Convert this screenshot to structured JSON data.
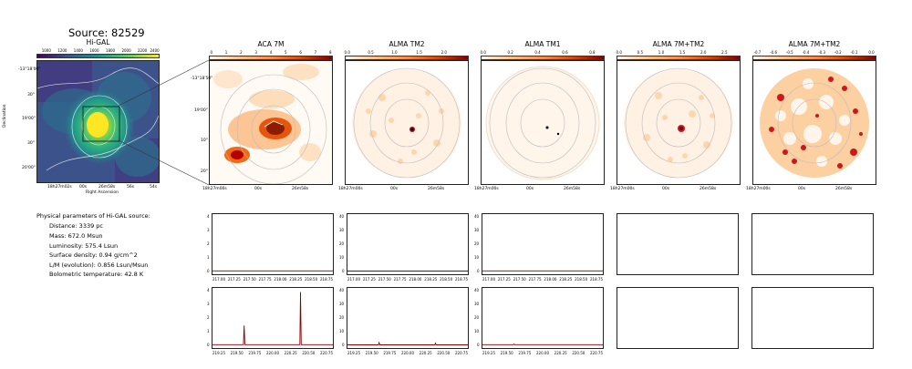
{
  "source_title": "Source: 82529",
  "panels": [
    {
      "title": "Hi-GAL",
      "cb_ticks": [
        "1000",
        "1200",
        "1400",
        "1600",
        "1800",
        "2000",
        "2200",
        "2400"
      ],
      "cb_colors": [
        "#440154",
        "#3b528b",
        "#21918c",
        "#5ec962",
        "#fde725"
      ]
    },
    {
      "title": "ACA 7M",
      "cb_ticks": [
        "0",
        "1",
        "2",
        "3",
        "4",
        "5",
        "6",
        "7",
        "8"
      ],
      "cb_colors": [
        "#fff5eb",
        "#fdbe85",
        "#fd8d3c",
        "#d94801",
        "#7f0000"
      ]
    },
    {
      "title": "ALMA TM2",
      "cb_ticks": [
        "0.0",
        "0.5",
        "1.0",
        "1.5",
        "2.0"
      ],
      "cb_colors": [
        "#fff5eb",
        "#fdbe85",
        "#fd8d3c",
        "#d94801",
        "#7f0000"
      ]
    },
    {
      "title": "ALMA TM1",
      "cb_ticks": [
        "0.0",
        "0.2",
        "0.4",
        "0.6",
        "0.8"
      ],
      "cb_colors": [
        "#fff5eb",
        "#fdbe85",
        "#fd8d3c",
        "#d94801",
        "#7f0000"
      ]
    },
    {
      "title": "ALMA 7M+TM2",
      "cb_ticks": [
        "0.0",
        "0.5",
        "1.0",
        "1.5",
        "2.0",
        "2.5"
      ],
      "cb_colors": [
        "#fff5eb",
        "#fdbe85",
        "#fd8d3c",
        "#d94801",
        "#7f0000"
      ]
    },
    {
      "title": "ALMA 7M+TM2",
      "cb_ticks": [
        "-0.7",
        "-0.6",
        "-0.5",
        "-0.4",
        "-0.3",
        "-0.2",
        "-0.1",
        "0.0"
      ],
      "cb_colors": [
        "#fff5eb",
        "#fdbe85",
        "#fd8d3c",
        "#d94801",
        "#7f0000"
      ]
    }
  ],
  "higal_axes": {
    "ylabel": "Declination",
    "xlabel": "Right Ascension",
    "yticks": [
      "-13°18'00\"",
      "30\"",
      "19'00\"",
      "30\"",
      "20'00\""
    ],
    "xticks": [
      "18h27m02s",
      "00s",
      "26m58s",
      "56s",
      "54s"
    ]
  },
  "cutout_axes": {
    "yticks": [
      "-13°18'50\"",
      "19'00\"",
      "10\"",
      "20\""
    ],
    "xticks": [
      "18h27m00s",
      "00s",
      "26m58s"
    ]
  },
  "params": {
    "title": "Physical parameters of Hi-GAL source:",
    "lines": [
      "Distance: 3339 pc",
      "Mass: 672.0 Msun",
      "Luminosity: 575.4 Lsun",
      "Surface density: 0.94 g/cm^2",
      "L/M (evolution): 0.856 Lsun/Msun",
      "Bolometric temperature: 42.8 K"
    ]
  },
  "spectra": {
    "row1_xticks": [
      "217.00",
      "217.25",
      "217.50",
      "217.75",
      "218.00",
      "218.25",
      "218.50",
      "218.75"
    ],
    "row2_xticks": [
      "219.25",
      "219.50",
      "219.75",
      "220.00",
      "220.25",
      "220.50",
      "220.75"
    ],
    "aca_yticks": [
      "4",
      "3",
      "2",
      "1",
      "0"
    ],
    "alma_yticks": [
      "40",
      "30",
      "20",
      "10",
      "0"
    ],
    "line_color": "#8b0000"
  },
  "chart_data": [
    {
      "type": "line",
      "title": "ACA 7M",
      "ylim": [
        0,
        4
      ],
      "xlim": [
        216.9,
        218.85
      ],
      "series": [
        {
          "x": [
            216.9,
            217.5,
            218.0,
            218.85
          ],
          "values": [
            0.05,
            0.05,
            0.05,
            0.05
          ]
        }
      ]
    },
    {
      "type": "line",
      "title": "ALMA TM2",
      "ylim": [
        0,
        40
      ],
      "xlim": [
        216.9,
        218.85
      ],
      "series": [
        {
          "x": [
            216.9,
            217.5,
            218.0,
            218.85
          ],
          "values": [
            0.3,
            0.3,
            0.3,
            0.3
          ]
        }
      ]
    },
    {
      "type": "line",
      "title": "ALMA TM1",
      "ylim": [
        0,
        40
      ],
      "xlim": [
        216.9,
        218.85
      ],
      "series": [
        {
          "x": [
            216.9,
            217.5,
            218.0,
            218.85
          ],
          "values": [
            0.5,
            0.5,
            0.5,
            0.5
          ]
        }
      ]
    },
    {
      "type": "line",
      "title": "ACA 7M",
      "ylim": [
        0,
        4
      ],
      "xlim": [
        219.1,
        220.85
      ],
      "series": [
        {
          "x": [
            219.1,
            219.55,
            219.56,
            219.57,
            220.37,
            220.38,
            220.39,
            220.85
          ],
          "values": [
            0.05,
            0.05,
            1.45,
            0.05,
            0.05,
            3.9,
            0.05,
            0.05
          ]
        }
      ]
    },
    {
      "type": "line",
      "title": "ALMA TM2",
      "ylim": [
        0,
        40
      ],
      "xlim": [
        219.1,
        220.85
      ],
      "series": [
        {
          "x": [
            219.1,
            219.55,
            219.56,
            219.57,
            220.37,
            220.38,
            220.39,
            220.85
          ],
          "values": [
            0.3,
            0.3,
            2.0,
            0.3,
            0.3,
            1.6,
            0.3,
            0.3
          ]
        }
      ]
    },
    {
      "type": "line",
      "title": "ALMA TM1",
      "ylim": [
        0,
        40
      ],
      "xlim": [
        219.1,
        220.85
      ],
      "series": [
        {
          "x": [
            219.1,
            219.55,
            219.56,
            219.57,
            220.85
          ],
          "values": [
            0.5,
            0.5,
            0.9,
            0.5,
            0.5
          ]
        }
      ]
    }
  ]
}
